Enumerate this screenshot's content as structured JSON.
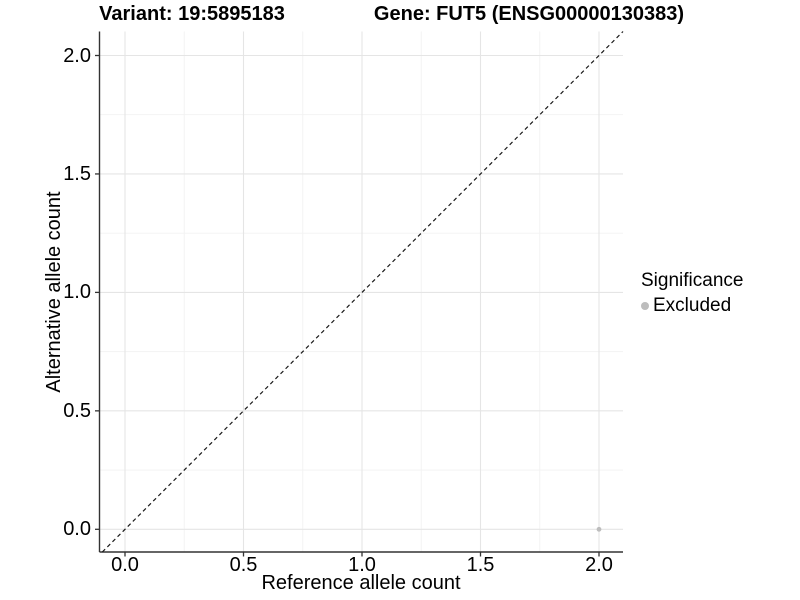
{
  "titles": {
    "variant": "Variant: 19:5895183",
    "gene": "Gene: FUT5 (ENSG00000130383)"
  },
  "axes": {
    "x": {
      "title": "Reference allele count"
    },
    "y": {
      "title": "Alternative allele count"
    }
  },
  "legend": {
    "title": "Significance",
    "position": "right",
    "items": [
      {
        "label": "Excluded",
        "color": "#bdbdbd"
      }
    ]
  },
  "colors": {
    "background": "#ffffff",
    "grid_major": "#e5e5e5",
    "grid_minor": "#f2f2f2",
    "axis_line": "#333333",
    "reference_line": "#1a1a1a",
    "point": "#bdbdbd",
    "text": "#000000"
  },
  "chart_data": {
    "type": "scatter",
    "title": "Variant: 19:5895183  /  Gene: FUT5 (ENSG00000130383)",
    "xlabel": "Reference allele count",
    "ylabel": "Alternative allele count",
    "xlim": [
      0,
      2
    ],
    "ylim": [
      0,
      2
    ],
    "x_ticks": [
      0,
      0.5,
      1,
      1.5,
      2
    ],
    "x_tick_labels": [
      "0.0",
      "0.5",
      "1.0",
      "1.5",
      "2.0"
    ],
    "y_ticks": [
      0,
      0.5,
      1,
      1.5,
      2
    ],
    "y_tick_labels": [
      "0.0",
      "0.5",
      "1.0",
      "1.5",
      "2.0"
    ],
    "x_minor_ticks": [
      0.25,
      0.75,
      1.25,
      1.75
    ],
    "y_minor_ticks": [
      0.25,
      0.75,
      1.25,
      1.75
    ],
    "grid": "major+minor",
    "legend_position": "right",
    "series": [
      {
        "name": "Excluded",
        "color": "#bdbdbd",
        "points": [
          {
            "x": 2.0,
            "y": 0.0
          }
        ]
      }
    ],
    "reference_line": {
      "kind": "identity",
      "slope": 1,
      "intercept": 0,
      "dashed": true
    }
  }
}
